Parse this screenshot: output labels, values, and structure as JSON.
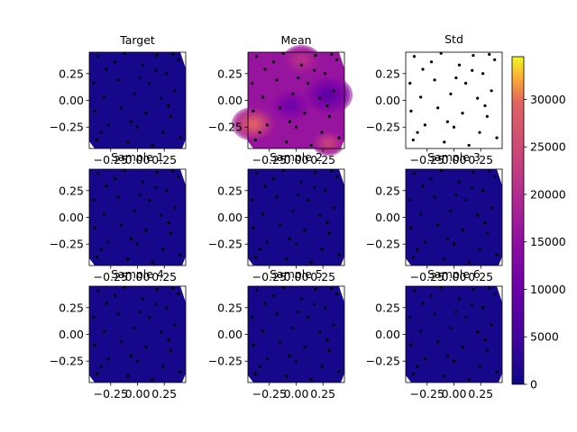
{
  "chart_data": {
    "type": "heatmap",
    "layout": "3x3 grid of contour maps with a shared colorbar",
    "panels": [
      {
        "title": "Target",
        "scale_value": 800
      },
      {
        "title": "Mean",
        "scale_value": 16000
      },
      {
        "title": "Std",
        "scale_value": 0
      },
      {
        "title": "Sample 1",
        "scale_value": 800
      },
      {
        "title": "Sample 2",
        "scale_value": 800
      },
      {
        "title": "Sample 3",
        "scale_value": 800
      },
      {
        "title": "Sample 4",
        "scale_value": 800
      },
      {
        "title": "Sample 5",
        "scale_value": 800
      },
      {
        "title": "Sample 6",
        "scale_value": 800
      }
    ],
    "x_ticks": [
      "−0.25",
      "0.00",
      "0.25"
    ],
    "x_tick_values": [
      -0.25,
      0.0,
      0.25
    ],
    "y_ticks": [
      "0.25",
      "0.00",
      "−0.25"
    ],
    "y_tick_values": [
      0.25,
      0.0,
      -0.25
    ],
    "xlim": [
      -0.45,
      0.45
    ],
    "ylim": [
      -0.45,
      0.45
    ],
    "colorbar": {
      "colormap": "plasma",
      "ticks": [
        "0",
        "5000",
        "10000",
        "15000",
        "20000",
        "25000",
        "30000"
      ],
      "tick_values": [
        0,
        5000,
        10000,
        15000,
        20000,
        25000,
        30000
      ],
      "range": [
        0,
        34500
      ]
    },
    "points": [
      [
        -0.37,
        0.41
      ],
      [
        -0.12,
        0.44
      ],
      [
        0.18,
        0.42
      ],
      [
        0.38,
        0.38
      ],
      [
        -0.29,
        0.29
      ],
      [
        0.05,
        0.33
      ],
      [
        0.27,
        0.25
      ],
      [
        -0.41,
        0.16
      ],
      [
        -0.18,
        0.19
      ],
      [
        0.11,
        0.16
      ],
      [
        0.35,
        0.09
      ],
      [
        -0.31,
        0.03
      ],
      [
        -0.03,
        0.06
      ],
      [
        0.22,
        0.02
      ],
      [
        -0.4,
        -0.1
      ],
      [
        -0.15,
        -0.07
      ],
      [
        0.08,
        -0.12
      ],
      [
        0.31,
        -0.15
      ],
      [
        -0.27,
        -0.23
      ],
      [
        0.0,
        -0.25
      ],
      [
        0.24,
        -0.3
      ],
      [
        -0.38,
        -0.37
      ],
      [
        -0.09,
        -0.39
      ],
      [
        0.14,
        -0.42
      ],
      [
        0.4,
        -0.35
      ],
      [
        -0.21,
        0.36
      ],
      [
        0.33,
        0.43
      ],
      [
        -0.06,
        -0.2
      ],
      [
        0.17,
        0.28
      ],
      [
        -0.34,
        -0.3
      ],
      [
        0.02,
        0.21
      ],
      [
        0.29,
        -0.05
      ]
    ]
  }
}
